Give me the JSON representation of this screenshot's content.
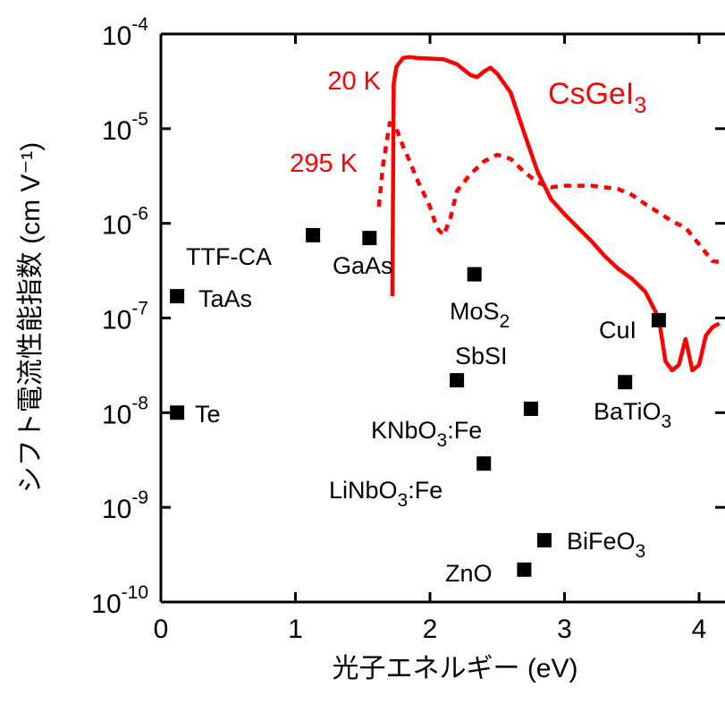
{
  "chart_data": {
    "type": "scatter",
    "xlabel": "光子エネルギー (eV)",
    "ylabel": "シフト電流性能指数 (cm V⁻¹)",
    "xlim": [
      0,
      4.15
    ],
    "ylim_log10": [
      -10,
      -4
    ],
    "x_scale": "linear",
    "y_scale": "log",
    "x_ticks": [
      0,
      1,
      2,
      3,
      4
    ],
    "x_tick_labels": [
      "0",
      "1",
      "2",
      "3",
      "4"
    ],
    "y_ticks_log10": [
      -10,
      -9,
      -8,
      -7,
      -6,
      -5,
      -4
    ],
    "y_tick_labels": [
      {
        "base": "10",
        "exp": "-10"
      },
      {
        "base": "10",
        "exp": "-9"
      },
      {
        "base": "10",
        "exp": "-8"
      },
      {
        "base": "10",
        "exp": "-7"
      },
      {
        "base": "10",
        "exp": "-6"
      },
      {
        "base": "10",
        "exp": "-5"
      },
      {
        "base": "10",
        "exp": "-4"
      }
    ],
    "grid": false,
    "series_label": {
      "text": "CsGeI",
      "sub": "3"
    },
    "lines": [
      {
        "label": "20 K",
        "color": "#ff0000",
        "style": "solid",
        "points": [
          [
            1.72,
            1.7e-07
          ],
          [
            1.73,
            3e-05
          ],
          [
            1.75,
            4.5e-05
          ],
          [
            1.8,
            5.6e-05
          ],
          [
            1.85,
            5.7e-05
          ],
          [
            1.9,
            5.6e-05
          ],
          [
            2.0,
            5.5e-05
          ],
          [
            2.1,
            5.4e-05
          ],
          [
            2.2,
            4.8e-05
          ],
          [
            2.3,
            3.7e-05
          ],
          [
            2.35,
            3.5e-05
          ],
          [
            2.4,
            4e-05
          ],
          [
            2.45,
            4.4e-05
          ],
          [
            2.5,
            3.8e-05
          ],
          [
            2.6,
            2.4e-05
          ],
          [
            2.7,
            9e-06
          ],
          [
            2.8,
            3.5e-06
          ],
          [
            2.9,
            1.8e-06
          ],
          [
            3.0,
            1.25e-06
          ],
          [
            3.1,
            9e-07
          ],
          [
            3.2,
            6.5e-07
          ],
          [
            3.3,
            4.5e-07
          ],
          [
            3.4,
            3.3e-07
          ],
          [
            3.5,
            2.6e-07
          ],
          [
            3.6,
            1.9e-07
          ],
          [
            3.7,
            1e-07
          ],
          [
            3.75,
            3.5e-08
          ],
          [
            3.8,
            2.8e-08
          ],
          [
            3.85,
            3.2e-08
          ],
          [
            3.9,
            6e-08
          ],
          [
            3.95,
            2.8e-08
          ],
          [
            4.0,
            3.2e-08
          ],
          [
            4.05,
            6.5e-08
          ],
          [
            4.1,
            8e-08
          ],
          [
            4.15,
            8.8e-08
          ]
        ]
      },
      {
        "label": "295 K",
        "color": "#ff0000",
        "style": "dotted",
        "points": [
          [
            1.62,
            1.5e-06
          ],
          [
            1.65,
            4e-06
          ],
          [
            1.7,
            1.15e-05
          ],
          [
            1.75,
            1e-05
          ],
          [
            1.8,
            6.5e-06
          ],
          [
            1.85,
            4.5e-06
          ],
          [
            1.9,
            3e-06
          ],
          [
            2.0,
            1.5e-06
          ],
          [
            2.05,
            9e-07
          ],
          [
            2.1,
            7.5e-07
          ],
          [
            2.15,
            1.1e-06
          ],
          [
            2.2,
            2.2e-06
          ],
          [
            2.3,
            3.3e-06
          ],
          [
            2.4,
            4.5e-06
          ],
          [
            2.5,
            5.3e-06
          ],
          [
            2.6,
            4.8e-06
          ],
          [
            2.7,
            3.5e-06
          ],
          [
            2.8,
            2.7e-06
          ],
          [
            2.9,
            2.4e-06
          ],
          [
            3.0,
            2.5e-06
          ],
          [
            3.1,
            2.5e-06
          ],
          [
            3.2,
            2.5e-06
          ],
          [
            3.3,
            2.4e-06
          ],
          [
            3.4,
            2.3e-06
          ],
          [
            3.5,
            2e-06
          ],
          [
            3.6,
            1.6e-06
          ],
          [
            3.7,
            1.3e-06
          ],
          [
            3.8,
            1.05e-06
          ],
          [
            3.9,
            9e-07
          ],
          [
            4.0,
            6e-07
          ],
          [
            4.1,
            4e-07
          ],
          [
            4.15,
            3.9e-07
          ]
        ]
      }
    ],
    "points": [
      {
        "name": "TTF-CA",
        "x": 1.13,
        "y": 7.5e-07,
        "label_parts": [
          {
            "t": "TTF-CA"
          }
        ]
      },
      {
        "name": "GaAs",
        "x": 1.55,
        "y": 7e-07,
        "label_parts": [
          {
            "t": "GaAs"
          }
        ]
      },
      {
        "name": "TaAs",
        "x": 0.12,
        "y": 1.7e-07,
        "label_parts": [
          {
            "t": "TaAs"
          }
        ]
      },
      {
        "name": "Te",
        "x": 0.12,
        "y": 1e-08,
        "label_parts": [
          {
            "t": "Te"
          }
        ]
      },
      {
        "name": "MoS2",
        "x": 2.33,
        "y": 2.9e-07,
        "label_parts": [
          {
            "t": "MoS"
          },
          {
            "t": "2",
            "sub": true
          }
        ]
      },
      {
        "name": "SbSI",
        "x": 2.2,
        "y": 2.2e-08,
        "label_parts": [
          {
            "t": "SbSI"
          }
        ]
      },
      {
        "name": "KNbO3:Fe",
        "x": 2.75,
        "y": 1.1e-08,
        "label_parts": [
          {
            "t": "KNbO"
          },
          {
            "t": "3",
            "sub": true
          },
          {
            "t": ":Fe"
          }
        ]
      },
      {
        "name": "LiNbO3:Fe",
        "x": 2.4,
        "y": 2.9e-09,
        "label_parts": [
          {
            "t": "LiNbO"
          },
          {
            "t": "3",
            "sub": true
          },
          {
            "t": ":Fe"
          }
        ]
      },
      {
        "name": "CuI",
        "x": 3.7,
        "y": 9.5e-08,
        "label_parts": [
          {
            "t": "CuI"
          }
        ]
      },
      {
        "name": "BaTiO3",
        "x": 3.45,
        "y": 2.1e-08,
        "label_parts": [
          {
            "t": "BaTiO"
          },
          {
            "t": "3",
            "sub": true
          }
        ]
      },
      {
        "name": "BiFeO3",
        "x": 2.85,
        "y": 4.5e-10,
        "label_parts": [
          {
            "t": "BiFeO"
          },
          {
            "t": "3",
            "sub": true
          }
        ]
      },
      {
        "name": "ZnO",
        "x": 2.7,
        "y": 2.2e-10,
        "label_parts": [
          {
            "t": "ZnO"
          }
        ]
      }
    ]
  }
}
